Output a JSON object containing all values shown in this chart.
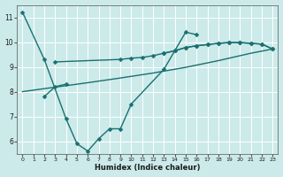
{
  "xlabel": "Humidex (Indice chaleur)",
  "bg_color": "#cceaea",
  "grid_color": "#ffffff",
  "line_color": "#1a7070",
  "xlim": [
    -0.5,
    23.5
  ],
  "ylim": [
    5.5,
    11.5
  ],
  "yticks": [
    6,
    7,
    8,
    9,
    10,
    11
  ],
  "xticks": [
    0,
    1,
    2,
    3,
    4,
    5,
    6,
    7,
    8,
    9,
    10,
    11,
    12,
    13,
    14,
    15,
    16,
    17,
    18,
    19,
    20,
    21,
    22,
    23
  ],
  "series": [
    {
      "x": [
        0,
        2,
        4,
        5,
        6,
        7,
        8,
        9,
        10,
        13,
        15,
        16
      ],
      "y": [
        11.2,
        9.3,
        6.9,
        5.9,
        5.6,
        6.1,
        6.5,
        6.5,
        7.5,
        8.9,
        10.4,
        10.3
      ],
      "marker": true
    },
    {
      "x": [
        3,
        9,
        10,
        11,
        12,
        13,
        14,
        15,
        16,
        17,
        18,
        19,
        20,
        21,
        22,
        23
      ],
      "y": [
        9.2,
        9.3,
        9.35,
        9.38,
        9.45,
        9.55,
        9.65,
        9.78,
        9.85,
        9.9,
        9.95,
        9.98,
        9.98,
        9.95,
        9.92,
        9.72
      ],
      "marker": true
    },
    {
      "x": [
        0,
        3,
        6,
        9,
        12,
        15,
        18,
        21,
        23
      ],
      "y": [
        8.0,
        8.18,
        8.36,
        8.55,
        8.75,
        8.98,
        9.25,
        9.55,
        9.72
      ],
      "marker": false
    },
    {
      "x": [
        2,
        3,
        4
      ],
      "y": [
        7.8,
        8.2,
        8.3
      ],
      "marker": true
    },
    {
      "x": [
        13,
        14,
        15,
        16,
        17,
        18,
        19,
        20,
        21,
        22,
        23
      ],
      "y": [
        9.55,
        9.65,
        9.78,
        9.85,
        9.9,
        9.95,
        9.98,
        9.98,
        9.95,
        9.92,
        9.72
      ],
      "marker": true
    }
  ],
  "markersize": 2.5,
  "linewidth": 1.0
}
